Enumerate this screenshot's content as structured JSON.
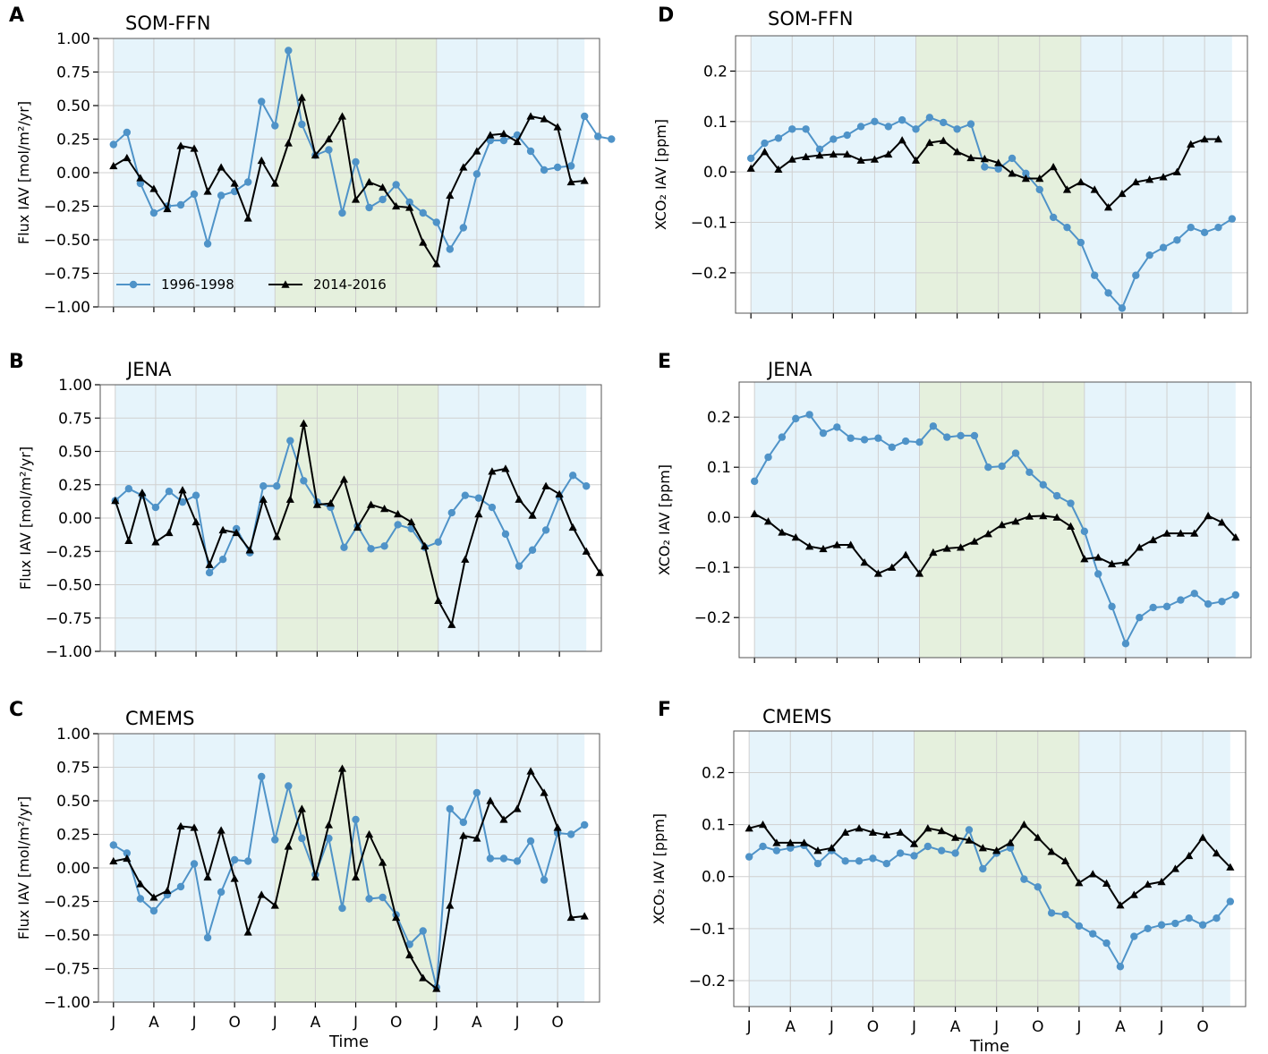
{
  "colors": {
    "blue_series": "#4f93c8",
    "black_series": "#000000",
    "shade_blue": "#e6f4fb",
    "shade_green": "#e5f0dd",
    "grid": "#d0d0d0",
    "frame": "#555555"
  },
  "legend": {
    "entries": [
      "1996-1998",
      "2014-2016"
    ]
  },
  "x_tick_labels": [
    "J",
    "A",
    "J",
    "O",
    "J",
    "A",
    "J",
    "O",
    "J",
    "A",
    "J",
    "O"
  ],
  "chart_data": [
    {
      "id": "A",
      "letter": "A",
      "type": "line",
      "title": "SOM-FFN",
      "ylabel": "Flux IAV [mol/m²/yr]",
      "xlabel": "",
      "ylim": [
        -1.0,
        1.0
      ],
      "yticks": [
        -1.0,
        -0.75,
        -0.5,
        -0.25,
        0.0,
        0.25,
        0.5,
        0.75,
        1.0
      ],
      "ytick_labels": [
        "−1.00",
        "−0.75",
        "−0.50",
        "−0.25",
        "0.00",
        "0.25",
        "0.50",
        "0.75",
        "1.00"
      ],
      "show_legend": true,
      "series": [
        {
          "name": "1996-1998",
          "marker": "circle",
          "values": [
            0.21,
            0.3,
            -0.08,
            -0.3,
            -0.25,
            -0.24,
            -0.16,
            -0.53,
            -0.17,
            -0.14,
            -0.07,
            0.53,
            0.35,
            0.91,
            0.36,
            0.13,
            0.17,
            -0.3,
            0.08,
            -0.26,
            -0.2,
            -0.09,
            -0.22,
            -0.3,
            -0.37,
            -0.57,
            -0.41,
            -0.01,
            0.24,
            0.24,
            0.28,
            0.16,
            0.02,
            0.04,
            0.05,
            0.42,
            0.27,
            0.25
          ]
        },
        {
          "name": "2014-2016",
          "marker": "triangle",
          "values": [
            0.05,
            0.11,
            -0.04,
            -0.12,
            -0.27,
            0.2,
            0.18,
            -0.14,
            0.04,
            -0.08,
            -0.34,
            0.09,
            -0.08,
            0.22,
            0.56,
            0.13,
            0.25,
            0.42,
            -0.2,
            -0.07,
            -0.11,
            -0.25,
            -0.26,
            -0.52,
            -0.68,
            -0.17,
            0.04,
            0.16,
            0.28,
            0.29,
            0.23,
            0.42,
            0.4,
            0.34,
            -0.07,
            -0.06
          ]
        }
      ]
    },
    {
      "id": "B",
      "letter": "B",
      "type": "line",
      "title": "JENA",
      "ylabel": "Flux IAV [mol/m²/yr]",
      "xlabel": "",
      "ylim": [
        -1.0,
        1.0
      ],
      "yticks": [
        -1.0,
        -0.75,
        -0.5,
        -0.25,
        0.0,
        0.25,
        0.5,
        0.75,
        1.0
      ],
      "ytick_labels": [
        "−1.00",
        "−0.75",
        "−0.50",
        "−0.25",
        "0.00",
        "0.25",
        "0.50",
        "0.75",
        "1.00"
      ],
      "show_legend": false,
      "series": [
        {
          "name": "1996-1998",
          "marker": "circle",
          "values": [
            0.13,
            0.22,
            0.17,
            0.08,
            0.2,
            0.12,
            0.17,
            -0.41,
            -0.31,
            -0.08,
            -0.26,
            0.24,
            0.24,
            0.58,
            0.28,
            0.12,
            0.08,
            -0.22,
            -0.06,
            -0.23,
            -0.21,
            -0.05,
            -0.08,
            -0.22,
            -0.18,
            0.04,
            0.17,
            0.15,
            0.08,
            -0.12,
            -0.36,
            -0.24,
            -0.09,
            0.16,
            0.32,
            0.24
          ]
        },
        {
          "name": "2014-2016",
          "marker": "triangle",
          "values": [
            0.13,
            -0.17,
            0.19,
            -0.18,
            -0.11,
            0.21,
            -0.03,
            -0.35,
            -0.09,
            -0.11,
            -0.24,
            0.14,
            -0.14,
            0.14,
            0.71,
            0.1,
            0.11,
            0.29,
            -0.07,
            0.1,
            0.07,
            0.03,
            -0.03,
            -0.21,
            -0.62,
            -0.8,
            -0.31,
            0.03,
            0.35,
            0.37,
            0.14,
            0.02,
            0.24,
            0.18,
            -0.07,
            -0.25,
            -0.41
          ]
        }
      ]
    },
    {
      "id": "C",
      "letter": "C",
      "type": "line",
      "title": "CMEMS",
      "ylabel": "Flux IAV [mol/m²/yr]",
      "xlabel": "Time",
      "ylim": [
        -1.0,
        1.0
      ],
      "yticks": [
        -1.0,
        -0.75,
        -0.5,
        -0.25,
        0.0,
        0.25,
        0.5,
        0.75,
        1.0
      ],
      "ytick_labels": [
        "−1.00",
        "−0.75",
        "−0.50",
        "−0.25",
        "0.00",
        "0.25",
        "0.50",
        "0.75",
        "1.00"
      ],
      "show_legend": false,
      "series": [
        {
          "name": "1996-1998",
          "marker": "circle",
          "values": [
            0.17,
            0.11,
            -0.23,
            -0.32,
            -0.2,
            -0.14,
            0.03,
            -0.52,
            -0.18,
            0.06,
            0.05,
            0.68,
            0.21,
            0.61,
            0.22,
            -0.05,
            0.22,
            -0.3,
            0.36,
            -0.23,
            -0.22,
            -0.35,
            -0.57,
            -0.47,
            -0.89,
            0.44,
            0.34,
            0.56,
            0.07,
            0.07,
            0.05,
            0.2,
            -0.09,
            0.26,
            0.25,
            0.32
          ]
        },
        {
          "name": "2014-2016",
          "marker": "triangle",
          "values": [
            0.05,
            0.07,
            -0.12,
            -0.22,
            -0.17,
            0.31,
            0.3,
            -0.07,
            0.28,
            -0.08,
            -0.48,
            -0.2,
            -0.28,
            0.16,
            0.44,
            -0.07,
            0.32,
            0.74,
            -0.07,
            0.25,
            0.04,
            -0.37,
            -0.65,
            -0.82,
            -0.9,
            -0.28,
            0.24,
            0.22,
            0.5,
            0.36,
            0.44,
            0.72,
            0.56,
            0.3,
            -0.37,
            -0.36
          ]
        }
      ]
    },
    {
      "id": "D",
      "letter": "D",
      "type": "line",
      "title": "SOM-FFN",
      "ylabel": "XCO₂ IAV [ppm]",
      "xlabel": "",
      "ylim": [
        -0.28,
        0.27
      ],
      "yticks": [
        -0.2,
        -0.1,
        0.0,
        0.1,
        0.2
      ],
      "ytick_labels": [
        "−0.2",
        "−0.1",
        "0.0",
        "0.1",
        "0.2"
      ],
      "show_legend": false,
      "series": [
        {
          "name": "1996-1998",
          "marker": "circle",
          "values": [
            0.027,
            0.057,
            0.067,
            0.085,
            0.085,
            0.045,
            0.065,
            0.073,
            0.09,
            0.1,
            0.09,
            0.103,
            0.085,
            0.108,
            0.098,
            0.085,
            0.095,
            0.01,
            0.006,
            0.027,
            -0.003,
            -0.035,
            -0.09,
            -0.11,
            -0.14,
            -0.205,
            -0.24,
            -0.27,
            -0.205,
            -0.165,
            -0.15,
            -0.135,
            -0.11,
            -0.12,
            -0.11,
            -0.093
          ]
        },
        {
          "name": "2014-2016",
          "marker": "triangle",
          "values": [
            0.007,
            0.04,
            0.005,
            0.025,
            0.03,
            0.033,
            0.035,
            0.035,
            0.023,
            0.025,
            0.035,
            0.063,
            0.023,
            0.058,
            0.062,
            0.04,
            0.028,
            0.026,
            0.018,
            -0.003,
            -0.013,
            -0.013,
            0.01,
            -0.035,
            -0.02,
            -0.035,
            -0.07,
            -0.043,
            -0.02,
            -0.015,
            -0.01,
            0.0,
            0.055,
            0.065,
            0.065
          ]
        }
      ]
    },
    {
      "id": "E",
      "letter": "E",
      "type": "line",
      "title": "JENA",
      "ylabel": "XCO₂ IAV [ppm]",
      "xlabel": "",
      "ylim": [
        -0.28,
        0.27
      ],
      "yticks": [
        -0.2,
        -0.1,
        0.0,
        0.1,
        0.2
      ],
      "ytick_labels": [
        "−0.2",
        "−0.1",
        "0.0",
        "0.1",
        "0.2"
      ],
      "show_legend": false,
      "series": [
        {
          "name": "1996-1998",
          "marker": "circle",
          "values": [
            0.072,
            0.12,
            0.16,
            0.197,
            0.205,
            0.168,
            0.18,
            0.158,
            0.155,
            0.158,
            0.14,
            0.152,
            0.15,
            0.182,
            0.16,
            0.163,
            0.163,
            0.1,
            0.102,
            0.128,
            0.09,
            0.065,
            0.043,
            0.028,
            -0.028,
            -0.113,
            -0.178,
            -0.252,
            -0.2,
            -0.18,
            -0.178,
            -0.165,
            -0.152,
            -0.173,
            -0.168,
            -0.155
          ]
        },
        {
          "name": "2014-2016",
          "marker": "triangle",
          "values": [
            0.007,
            -0.008,
            -0.03,
            -0.04,
            -0.058,
            -0.063,
            -0.055,
            -0.055,
            -0.09,
            -0.112,
            -0.1,
            -0.075,
            -0.112,
            -0.07,
            -0.062,
            -0.06,
            -0.048,
            -0.033,
            -0.015,
            -0.008,
            0.002,
            0.003,
            0.0,
            -0.018,
            -0.083,
            -0.08,
            -0.093,
            -0.09,
            -0.06,
            -0.045,
            -0.032,
            -0.032,
            -0.032,
            0.003,
            -0.01,
            -0.04
          ]
        }
      ]
    },
    {
      "id": "F",
      "letter": "F",
      "type": "line",
      "title": "CMEMS",
      "ylabel": "XCO₂ IAV [ppm]",
      "xlabel": "Time",
      "ylim": [
        -0.25,
        0.28
      ],
      "yticks": [
        -0.2,
        -0.1,
        0.0,
        0.1,
        0.2
      ],
      "ytick_labels": [
        "−0.2",
        "−0.1",
        "0.0",
        "0.1",
        "0.2"
      ],
      "show_legend": false,
      "series": [
        {
          "name": "1996-1998",
          "marker": "circle",
          "values": [
            0.038,
            0.058,
            0.05,
            0.055,
            0.06,
            0.025,
            0.05,
            0.03,
            0.03,
            0.035,
            0.025,
            0.045,
            0.04,
            0.058,
            0.05,
            0.045,
            0.09,
            0.015,
            0.045,
            0.055,
            -0.005,
            -0.02,
            -0.07,
            -0.073,
            -0.095,
            -0.11,
            -0.128,
            -0.173,
            -0.115,
            -0.1,
            -0.093,
            -0.09,
            -0.08,
            -0.093,
            -0.08,
            -0.048
          ]
        },
        {
          "name": "2014-2016",
          "marker": "triangle",
          "values": [
            0.093,
            0.1,
            0.065,
            0.065,
            0.065,
            0.05,
            0.055,
            0.085,
            0.093,
            0.085,
            0.08,
            0.085,
            0.063,
            0.093,
            0.088,
            0.075,
            0.07,
            0.055,
            0.05,
            0.065,
            0.1,
            0.075,
            0.048,
            0.03,
            -0.012,
            0.005,
            -0.013,
            -0.055,
            -0.035,
            -0.015,
            -0.01,
            0.015,
            0.04,
            0.075,
            0.045,
            0.018
          ]
        }
      ]
    }
  ]
}
